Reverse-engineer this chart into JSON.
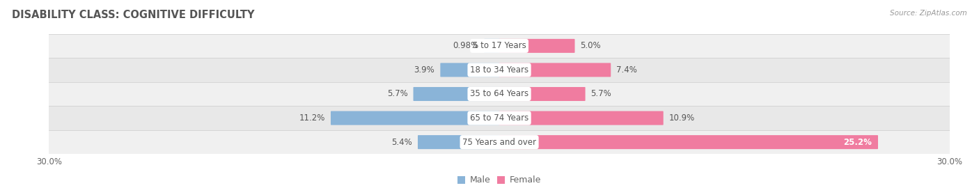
{
  "title": "DISABILITY CLASS: COGNITIVE DIFFICULTY",
  "source": "Source: ZipAtlas.com",
  "categories": [
    "5 to 17 Years",
    "18 to 34 Years",
    "35 to 64 Years",
    "65 to 74 Years",
    "75 Years and over"
  ],
  "male_values": [
    0.98,
    3.9,
    5.7,
    11.2,
    5.4
  ],
  "female_values": [
    5.0,
    7.4,
    5.7,
    10.9,
    25.2
  ],
  "male_color": "#8ab4d8",
  "female_color": "#f07ca0",
  "row_colors": [
    "#f0f0f0",
    "#e8e8e8",
    "#f0f0f0",
    "#e8e8e8",
    "#f0f0f0"
  ],
  "x_min": -30.0,
  "x_max": 30.0,
  "bar_height": 0.52,
  "label_fontsize": 8.5,
  "title_fontsize": 10.5,
  "axis_label_fontsize": 8.5,
  "legend_fontsize": 9,
  "category_fontsize": 8.5,
  "value_label_color": "#555555",
  "title_color": "#555555",
  "source_color": "#999999"
}
